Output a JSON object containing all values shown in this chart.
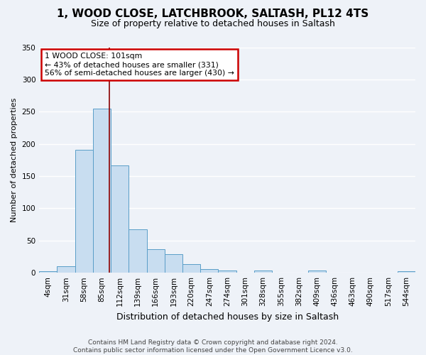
{
  "title": "1, WOOD CLOSE, LATCHBROOK, SALTASH, PL12 4TS",
  "subtitle": "Size of property relative to detached houses in Saltash",
  "xlabel": "Distribution of detached houses by size in Saltash",
  "ylabel": "Number of detached properties",
  "bar_labels": [
    "4sqm",
    "31sqm",
    "58sqm",
    "85sqm",
    "112sqm",
    "139sqm",
    "166sqm",
    "193sqm",
    "220sqm",
    "247sqm",
    "274sqm",
    "301sqm",
    "328sqm",
    "355sqm",
    "382sqm",
    "409sqm",
    "436sqm",
    "463sqm",
    "490sqm",
    "517sqm",
    "544sqm"
  ],
  "bar_values": [
    2,
    10,
    191,
    255,
    167,
    67,
    37,
    29,
    13,
    6,
    3,
    0,
    4,
    0,
    0,
    3,
    0,
    0,
    0,
    0,
    2
  ],
  "bar_color": "#c8ddf0",
  "bar_edge_color": "#5a9ec8",
  "ylim": [
    0,
    350
  ],
  "yticks": [
    0,
    50,
    100,
    150,
    200,
    250,
    300,
    350
  ],
  "vline_x": 3.43,
  "annotation_line1": "1 WOOD CLOSE: 101sqm",
  "annotation_line2": "← 43% of detached houses are smaller (331)",
  "annotation_line3": "56% of semi-detached houses are larger (430) →",
  "annotation_box_color": "#ffffff",
  "annotation_box_edge_color": "#cc0000",
  "vline_color": "#8b0000",
  "bg_color": "#eef2f8",
  "plot_bg_color": "#eef2f8",
  "grid_color": "#ffffff",
  "footer": "Contains HM Land Registry data © Crown copyright and database right 2024.\nContains public sector information licensed under the Open Government Licence v3.0.",
  "title_fontsize": 11,
  "subtitle_fontsize": 9,
  "xlabel_fontsize": 9,
  "ylabel_fontsize": 8,
  "tick_fontsize": 7.5,
  "footer_fontsize": 6.5
}
